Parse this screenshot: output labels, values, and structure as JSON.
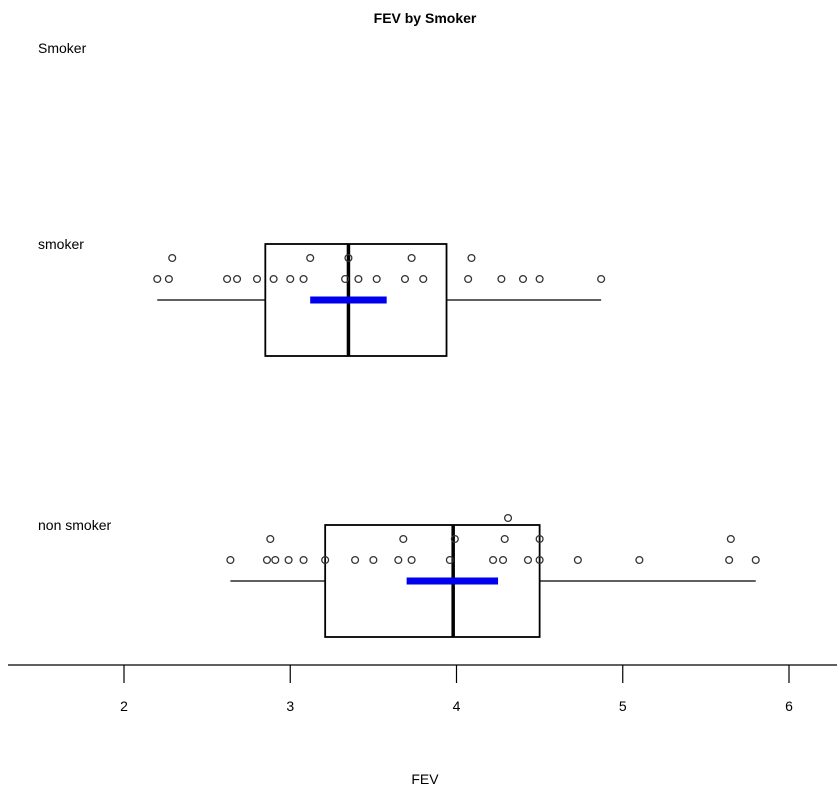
{
  "chart_data": {
    "type": "boxplot",
    "title": "FEV by Smoker",
    "xlabel": "FEV",
    "group_label": "Smoker",
    "xlim": [
      1.3,
      6.3
    ],
    "x_ticks": [
      2,
      3,
      4,
      5,
      6
    ],
    "grid": false,
    "groups": [
      {
        "name": "smoker",
        "min": 2.2,
        "q1": 2.85,
        "median": 3.35,
        "q3": 3.94,
        "max": 4.87,
        "mean_ci": [
          3.12,
          3.58
        ],
        "points": [
          2.2,
          2.27,
          2.29,
          2.62,
          2.68,
          2.8,
          2.9,
          3.0,
          3.08,
          3.12,
          3.33,
          3.35,
          3.41,
          3.52,
          3.69,
          3.73,
          3.8,
          4.07,
          4.09,
          4.27,
          4.4,
          4.5,
          4.87
        ]
      },
      {
        "name": "non smoker",
        "min": 2.64,
        "q1": 3.21,
        "median": 3.98,
        "q3": 4.5,
        "max": 5.8,
        "mean_ci": [
          3.7,
          4.25
        ],
        "points": [
          2.64,
          2.86,
          2.88,
          2.91,
          2.99,
          3.08,
          3.21,
          3.39,
          3.5,
          3.65,
          3.68,
          3.73,
          3.96,
          3.99,
          4.22,
          4.28,
          4.29,
          4.31,
          4.43,
          4.5,
          4.5,
          4.73,
          5.1,
          5.64,
          5.65,
          5.8
        ]
      }
    ],
    "colors": {
      "box": "#000000",
      "mean_ci": "#0000ee",
      "points": "#333333"
    }
  }
}
